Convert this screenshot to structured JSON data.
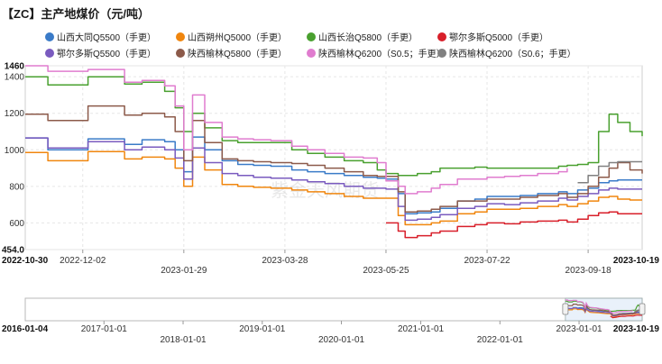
{
  "title": "【ZC】主产地煤价（元/吨）",
  "watermark": "紫金天风期货",
  "chart_data": {
    "type": "line",
    "title": "【ZC】主产地煤价（元/吨）",
    "xlabel": "",
    "ylabel": "",
    "ylim": [
      454,
      1460
    ],
    "y_ticks": [
      "1460",
      "1400",
      "1200",
      "1000",
      "800",
      "600",
      "454.0"
    ],
    "x_range": [
      "2022-10-30",
      "2023-10-19"
    ],
    "x_ticks": [
      "2022-10-30",
      "2022-12-02",
      "2023-01-29",
      "2023-03-28",
      "2023-05-25",
      "2023-07-22",
      "2023-09-18",
      "2023-10-19"
    ],
    "grid": true,
    "legend_position": "top",
    "series": [
      {
        "name": "山西大同Q5500（手更）",
        "color": "#3a7bc8",
        "x": [
          "2022-10-30",
          "2022-11-10",
          "2022-11-12",
          "2022-12-01",
          "2022-12-05",
          "2022-12-20",
          "2022-12-26",
          "2023-01-05",
          "2023-01-18",
          "2023-01-24",
          "2023-01-29",
          "2023-02-03",
          "2023-02-10",
          "2023-02-20",
          "2023-03-01",
          "2023-03-10",
          "2023-03-20",
          "2023-04-01",
          "2023-04-10",
          "2023-04-20",
          "2023-05-01",
          "2023-05-12",
          "2023-05-20",
          "2023-05-25",
          "2023-06-01",
          "2023-06-05",
          "2023-06-12",
          "2023-06-20",
          "2023-06-25",
          "2023-07-05",
          "2023-07-15",
          "2023-07-22",
          "2023-08-01",
          "2023-08-10",
          "2023-08-20",
          "2023-09-01",
          "2023-09-06",
          "2023-09-12",
          "2023-09-18",
          "2023-09-24",
          "2023-09-30",
          "2023-10-05",
          "2023-10-12",
          "2023-10-19"
        ],
        "values": [
          1065,
          1065,
          1000,
          1000,
          1060,
          1060,
          1030,
          1055,
          1045,
          1000,
          880,
          1070,
          1000,
          940,
          920,
          915,
          910,
          890,
          880,
          870,
          860,
          850,
          845,
          840,
          760,
          650,
          655,
          660,
          680,
          720,
          730,
          745,
          745,
          750,
          760,
          770,
          760,
          780,
          790,
          820,
          830,
          835,
          835,
          835
        ]
      },
      {
        "name": "山西朔州Q5000（手更）",
        "color": "#f0860e",
        "x": [
          "2022-10-30",
          "2022-11-10",
          "2022-11-12",
          "2022-12-01",
          "2022-12-05",
          "2022-12-20",
          "2022-12-26",
          "2023-01-05",
          "2023-01-18",
          "2023-01-24",
          "2023-01-29",
          "2023-02-03",
          "2023-02-10",
          "2023-02-20",
          "2023-03-01",
          "2023-03-10",
          "2023-03-20",
          "2023-04-01",
          "2023-04-10",
          "2023-04-20",
          "2023-05-01",
          "2023-05-12",
          "2023-05-20",
          "2023-05-25",
          "2023-06-01",
          "2023-06-05",
          "2023-06-12",
          "2023-06-20",
          "2023-06-25",
          "2023-07-05",
          "2023-07-15",
          "2023-07-22",
          "2023-08-01",
          "2023-08-10",
          "2023-08-20",
          "2023-09-01",
          "2023-09-06",
          "2023-09-12",
          "2023-09-18",
          "2023-09-24",
          "2023-09-30",
          "2023-10-05",
          "2023-10-12",
          "2023-10-19"
        ],
        "values": [
          985,
          985,
          940,
          940,
          990,
          990,
          950,
          960,
          950,
          900,
          800,
          960,
          890,
          810,
          800,
          795,
          790,
          780,
          770,
          760,
          745,
          735,
          735,
          735,
          640,
          590,
          590,
          600,
          610,
          650,
          660,
          675,
          675,
          680,
          690,
          700,
          690,
          705,
          720,
          740,
          745,
          730,
          725,
          725
        ]
      },
      {
        "name": "山西长治Q5800（手更）",
        "color": "#49a02f",
        "x": [
          "2022-10-30",
          "2022-11-10",
          "2022-11-12",
          "2022-12-01",
          "2022-12-05",
          "2022-12-20",
          "2022-12-26",
          "2023-01-05",
          "2023-01-18",
          "2023-01-24",
          "2023-01-29",
          "2023-02-03",
          "2023-02-10",
          "2023-02-20",
          "2023-03-01",
          "2023-03-10",
          "2023-03-20",
          "2023-04-01",
          "2023-04-10",
          "2023-04-20",
          "2023-05-01",
          "2023-05-12",
          "2023-05-20",
          "2023-05-25",
          "2023-06-01",
          "2023-06-05",
          "2023-06-12",
          "2023-06-20",
          "2023-06-25",
          "2023-07-05",
          "2023-07-15",
          "2023-07-22",
          "2023-08-01",
          "2023-08-10",
          "2023-08-20",
          "2023-09-01",
          "2023-09-06",
          "2023-09-12",
          "2023-09-18",
          "2023-09-24",
          "2023-09-30",
          "2023-10-05",
          "2023-10-12",
          "2023-10-19"
        ],
        "values": [
          1400,
          1400,
          1355,
          1355,
          1400,
          1400,
          1360,
          1370,
          1320,
          1230,
          1100,
          1200,
          1120,
          1050,
          1040,
          1040,
          1040,
          1000,
          980,
          960,
          940,
          930,
          890,
          870,
          860,
          860,
          870,
          880,
          900,
          900,
          905,
          900,
          900,
          900,
          900,
          910,
          915,
          920,
          930,
          1100,
          1195,
          1150,
          1100,
          1075
        ]
      },
      {
        "name": "鄂尔多斯Q5000（手更）",
        "color": "#d81f2a",
        "x": [
          "2023-05-25",
          "2023-06-01",
          "2023-06-05",
          "2023-06-12",
          "2023-06-20",
          "2023-06-25",
          "2023-07-05",
          "2023-07-15",
          "2023-07-22",
          "2023-08-01",
          "2023-08-10",
          "2023-08-20",
          "2023-09-01",
          "2023-09-06",
          "2023-09-12",
          "2023-09-18",
          "2023-09-24",
          "2023-09-30",
          "2023-10-05",
          "2023-10-12",
          "2023-10-19"
        ],
        "values": [
          600,
          555,
          520,
          530,
          545,
          555,
          580,
          590,
          600,
          595,
          605,
          610,
          615,
          605,
          620,
          640,
          655,
          660,
          650,
          650,
          650
        ]
      },
      {
        "name": "鄂尔多斯Q5500（手更）",
        "color": "#7a5bbf",
        "x": [
          "2022-10-30",
          "2022-11-10",
          "2022-11-12",
          "2022-12-01",
          "2022-12-05",
          "2022-12-20",
          "2022-12-26",
          "2023-01-05",
          "2023-01-18",
          "2023-01-24",
          "2023-01-29",
          "2023-02-03",
          "2023-02-10",
          "2023-02-20",
          "2023-03-01",
          "2023-03-10",
          "2023-03-20",
          "2023-04-01",
          "2023-04-10",
          "2023-04-20",
          "2023-05-01",
          "2023-05-12",
          "2023-05-20",
          "2023-05-25",
          "2023-06-01",
          "2023-06-05",
          "2023-06-12",
          "2023-06-20",
          "2023-06-25",
          "2023-07-05",
          "2023-07-15",
          "2023-07-22",
          "2023-08-01",
          "2023-08-10",
          "2023-08-20",
          "2023-09-01",
          "2023-09-06",
          "2023-09-12",
          "2023-09-18",
          "2023-09-24",
          "2023-09-30",
          "2023-10-05",
          "2023-10-12",
          "2023-10-19"
        ],
        "values": [
          1065,
          1065,
          1010,
          1010,
          1045,
          1045,
          1000,
          1015,
          1000,
          955,
          840,
          1010,
          930,
          870,
          860,
          850,
          845,
          835,
          825,
          815,
          800,
          790,
          790,
          785,
          690,
          615,
          620,
          630,
          645,
          680,
          690,
          705,
          700,
          710,
          720,
          735,
          725,
          745,
          760,
          780,
          790,
          785,
          785,
          785
        ]
      },
      {
        "name": "陕西榆林Q5800（手更）",
        "color": "#8c5a4a",
        "x": [
          "2022-10-30",
          "2022-11-10",
          "2022-11-12",
          "2022-12-01",
          "2022-12-05",
          "2022-12-20",
          "2022-12-26",
          "2023-01-05",
          "2023-01-18",
          "2023-01-24",
          "2023-01-29",
          "2023-02-03",
          "2023-02-10",
          "2023-02-20",
          "2023-03-01",
          "2023-03-10",
          "2023-03-20",
          "2023-04-01",
          "2023-04-10",
          "2023-04-20",
          "2023-05-01",
          "2023-05-12",
          "2023-05-20",
          "2023-05-25",
          "2023-06-01",
          "2023-06-05",
          "2023-06-12",
          "2023-06-20",
          "2023-06-25",
          "2023-07-05",
          "2023-07-15",
          "2023-07-22",
          "2023-08-01",
          "2023-08-10",
          "2023-08-20",
          "2023-09-01",
          "2023-09-06",
          "2023-09-12",
          "2023-09-18",
          "2023-09-24",
          "2023-09-30",
          "2023-10-05",
          "2023-10-12",
          "2023-10-19"
        ],
        "values": [
          1195,
          1195,
          1160,
          1160,
          1240,
          1240,
          1190,
          1200,
          1180,
          1100,
          940,
          1160,
          1040,
          950,
          940,
          935,
          930,
          925,
          915,
          900,
          880,
          860,
          855,
          855,
          770,
          660,
          665,
          675,
          690,
          720,
          720,
          730,
          730,
          740,
          750,
          760,
          740,
          760,
          800,
          850,
          900,
          930,
          890,
          870
        ]
      },
      {
        "name": "陕西榆林Q6200（S0.5；手更）",
        "color": "#e07ccf",
        "x": [
          "2022-10-30",
          "2022-11-10",
          "2022-11-12",
          "2022-12-01",
          "2022-12-05",
          "2022-12-20",
          "2022-12-26",
          "2023-01-05",
          "2023-01-18",
          "2023-01-24",
          "2023-01-29",
          "2023-02-03",
          "2023-02-10",
          "2023-02-20",
          "2023-03-01",
          "2023-03-10",
          "2023-03-20",
          "2023-04-01",
          "2023-04-10",
          "2023-04-20",
          "2023-05-01",
          "2023-05-12",
          "2023-05-20",
          "2023-05-25",
          "2023-06-01",
          "2023-06-05",
          "2023-06-12",
          "2023-06-20",
          "2023-06-25",
          "2023-07-05",
          "2023-07-15",
          "2023-07-22",
          "2023-08-01",
          "2023-08-10",
          "2023-08-20",
          "2023-09-01",
          "2023-09-06"
        ],
        "values": [
          1460,
          1460,
          1430,
          1430,
          1440,
          1440,
          1370,
          1380,
          1350,
          1240,
          1000,
          1300,
          1150,
          1070,
          1060,
          1055,
          1050,
          1020,
          1000,
          980,
          960,
          955,
          930,
          830,
          800,
          760,
          770,
          790,
          810,
          840,
          840,
          850,
          855,
          860,
          870,
          880,
          900
        ]
      },
      {
        "name": "陕西榆林Q6200（S0.6；手更）",
        "color": "#808080",
        "x": [
          "2023-09-12",
          "2023-09-18",
          "2023-09-24",
          "2023-09-30",
          "2023-10-05",
          "2023-10-12",
          "2023-10-19"
        ],
        "values": [
          820,
          860,
          910,
          930,
          935,
          935,
          935
        ]
      }
    ],
    "navigator": {
      "x_range": [
        "2016-01-04",
        "2023-10-19"
      ],
      "x_ticks": [
        "2016-01-04",
        "2017-01-01",
        "2018-01-01",
        "2019-01-01",
        "2020-01-01",
        "2021-01-01",
        "2022-01-01",
        "2023-01-01",
        "2023-10-19"
      ]
    }
  }
}
